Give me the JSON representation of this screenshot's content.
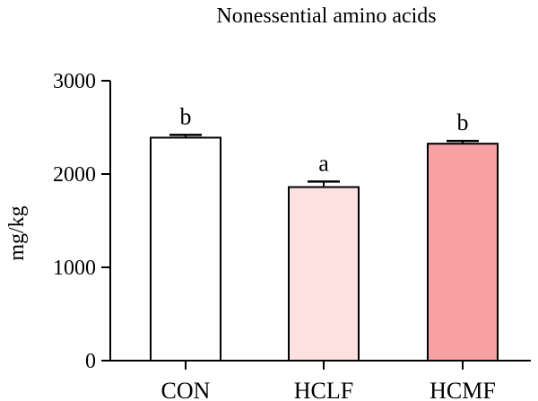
{
  "chart_data": {
    "type": "bar",
    "title": "Nonessential amino acids",
    "ylabel": "mg/kg",
    "xlabel": "",
    "ylim": [
      0,
      3000
    ],
    "yticks": [
      0,
      1000,
      2000,
      3000
    ],
    "categories": [
      "CON",
      "HCLF",
      "HCMF"
    ],
    "values": [
      2390,
      1860,
      2325
    ],
    "errors": [
      30,
      60,
      30
    ],
    "significance": [
      "b",
      "a",
      "b"
    ],
    "colors": [
      "#ffffff",
      "#fde0e0",
      "#f9a0a2"
    ],
    "edge_color": "#000000",
    "grid": false,
    "legend": "none"
  }
}
